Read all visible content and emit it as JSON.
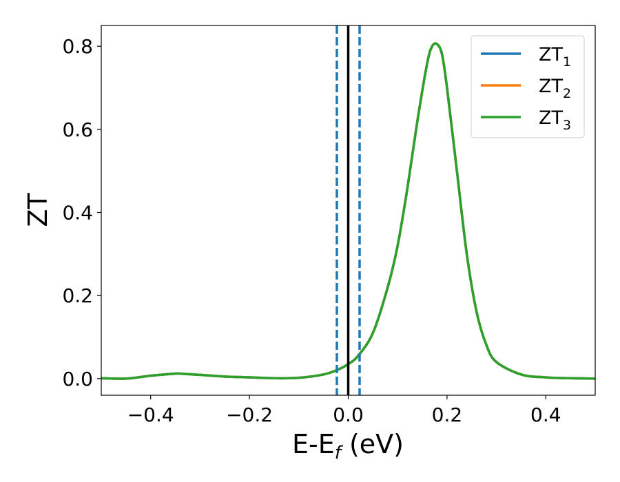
{
  "chart_data": {
    "type": "line",
    "title": "",
    "xlabel": {
      "main": "E-E",
      "sub": "f",
      "suffix": " (eV)"
    },
    "ylabel": "ZT",
    "xlim": [
      -0.5,
      0.5
    ],
    "ylim": [
      -0.04,
      0.85
    ],
    "grid": false,
    "legend_position": "top-right",
    "x_ticks": [
      -0.4,
      -0.2,
      0.0,
      0.2,
      0.4
    ],
    "x_tick_labels": [
      "−0.4",
      "−0.2",
      "0.0",
      "0.2",
      "0.4"
    ],
    "y_ticks": [
      0.0,
      0.2,
      0.4,
      0.6,
      0.8
    ],
    "y_tick_labels": [
      "0.0",
      "0.2",
      "0.4",
      "0.6",
      "0.8"
    ],
    "vertical_lines": [
      {
        "x": 0.0,
        "color": "#000000",
        "style": "solid"
      },
      {
        "x": -0.023,
        "color": "#1f77b4",
        "style": "dashed"
      },
      {
        "x": 0.023,
        "color": "#1f77b4",
        "style": "dashed"
      }
    ],
    "series": [
      {
        "name": "ZT",
        "sub": "1",
        "color": "#1f77b4",
        "x": [
          -0.5,
          -0.45,
          -0.4,
          -0.35,
          -0.34,
          -0.3,
          -0.25,
          -0.2,
          -0.15,
          -0.1,
          -0.05,
          -0.02,
          0.0,
          0.02,
          0.05,
          0.08,
          0.1,
          0.12,
          0.14,
          0.16,
          0.17,
          0.18,
          0.19,
          0.2,
          0.22,
          0.24,
          0.26,
          0.28,
          0.3,
          0.35,
          0.4,
          0.45,
          0.5
        ],
        "y": [
          0.001,
          0.0,
          0.007,
          0.012,
          0.012,
          0.009,
          0.005,
          0.003,
          0.001,
          0.002,
          0.01,
          0.022,
          0.035,
          0.055,
          0.11,
          0.22,
          0.32,
          0.46,
          0.62,
          0.76,
          0.8,
          0.805,
          0.78,
          0.7,
          0.5,
          0.3,
          0.16,
          0.08,
          0.04,
          0.01,
          0.003,
          0.001,
          0.0
        ]
      },
      {
        "name": "ZT",
        "sub": "2",
        "color": "#ff7f0e",
        "x": [
          -0.5,
          -0.45,
          -0.4,
          -0.35,
          -0.34,
          -0.3,
          -0.25,
          -0.2,
          -0.15,
          -0.1,
          -0.05,
          -0.02,
          0.0,
          0.02,
          0.05,
          0.08,
          0.1,
          0.12,
          0.14,
          0.16,
          0.17,
          0.18,
          0.19,
          0.2,
          0.22,
          0.24,
          0.26,
          0.28,
          0.3,
          0.35,
          0.4,
          0.45,
          0.5
        ],
        "y": [
          0.001,
          0.0,
          0.007,
          0.012,
          0.012,
          0.009,
          0.005,
          0.003,
          0.001,
          0.002,
          0.01,
          0.022,
          0.035,
          0.055,
          0.11,
          0.22,
          0.32,
          0.46,
          0.62,
          0.76,
          0.8,
          0.805,
          0.78,
          0.7,
          0.5,
          0.3,
          0.16,
          0.08,
          0.04,
          0.01,
          0.003,
          0.001,
          0.0
        ]
      },
      {
        "name": "ZT",
        "sub": "3",
        "color": "#2ca02c",
        "x": [
          -0.5,
          -0.45,
          -0.4,
          -0.35,
          -0.34,
          -0.3,
          -0.25,
          -0.2,
          -0.15,
          -0.1,
          -0.05,
          -0.02,
          0.0,
          0.02,
          0.05,
          0.08,
          0.1,
          0.12,
          0.14,
          0.16,
          0.17,
          0.18,
          0.19,
          0.2,
          0.22,
          0.24,
          0.26,
          0.28,
          0.3,
          0.35,
          0.4,
          0.45,
          0.5
        ],
        "y": [
          0.001,
          0.0,
          0.007,
          0.012,
          0.012,
          0.009,
          0.005,
          0.003,
          0.001,
          0.002,
          0.01,
          0.022,
          0.035,
          0.055,
          0.11,
          0.22,
          0.32,
          0.46,
          0.62,
          0.76,
          0.8,
          0.805,
          0.78,
          0.7,
          0.5,
          0.3,
          0.16,
          0.08,
          0.04,
          0.01,
          0.003,
          0.001,
          0.0
        ]
      }
    ]
  }
}
